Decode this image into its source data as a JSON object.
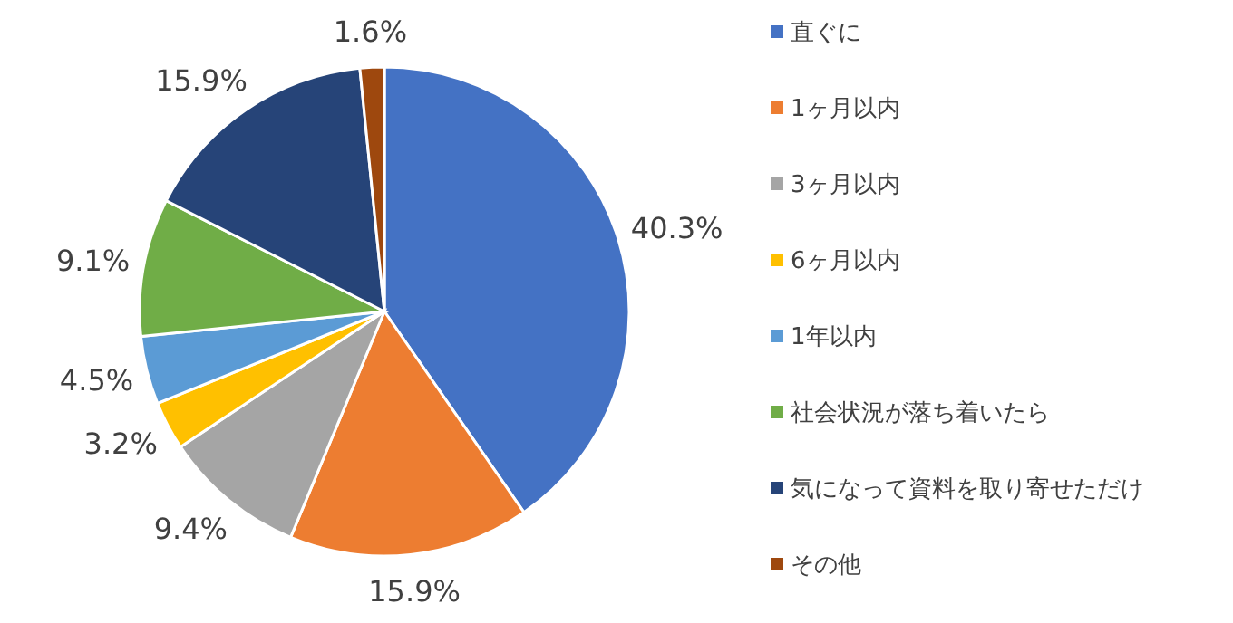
{
  "chart_data": {
    "type": "pie",
    "categories": [
      "直ぐに",
      "1ヶ月以内",
      "3ヶ月以内",
      "6ヶ月以内",
      "1年以内",
      "社会状況が落ち着いたら",
      "気になって資料を取り寄せただけ",
      "その他"
    ],
    "values": [
      40.3,
      15.9,
      9.4,
      3.2,
      4.5,
      9.1,
      15.9,
      1.6
    ],
    "colors": [
      "#4472c4",
      "#ed7d31",
      "#a5a5a5",
      "#ffc000",
      "#5b9bd5",
      "#70ad47",
      "#264478",
      "#9e480e"
    ],
    "value_labels": [
      "40.3%",
      "15.9%",
      "9.4%",
      "3.2%",
      "4.5%",
      "9.1%",
      "15.9%",
      "1.6%"
    ],
    "legend": "right"
  }
}
